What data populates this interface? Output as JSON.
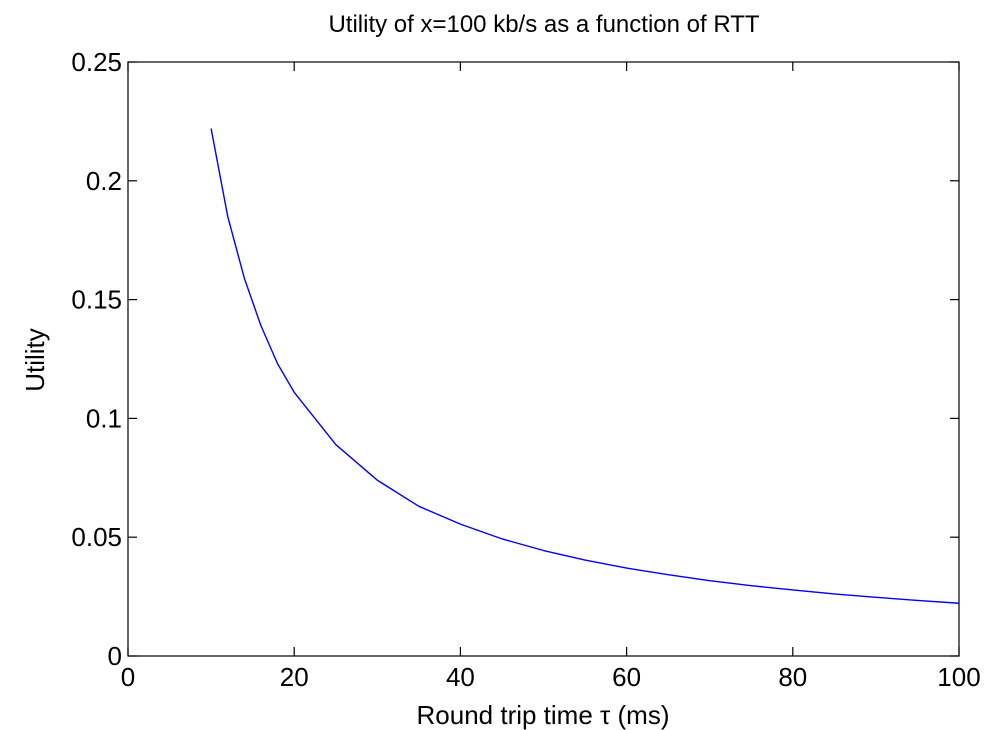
{
  "chart_data": {
    "type": "line",
    "title": "Utility of x=100 kb/s as a function of RTT",
    "xlabel": "Round trip time τ (ms)",
    "ylabel": "Utility",
    "xlim": [
      0,
      100
    ],
    "ylim": [
      0,
      0.25
    ],
    "xticks": [
      0,
      20,
      40,
      60,
      80,
      100
    ],
    "xtick_labels": [
      "0",
      "20",
      "40",
      "60",
      "80",
      "100"
    ],
    "yticks": [
      0,
      0.05,
      0.1,
      0.15,
      0.2,
      0.25
    ],
    "ytick_labels": [
      "0",
      "0.05",
      "0.1",
      "0.15",
      "0.2",
      "0.25"
    ],
    "grid": false,
    "series": [
      {
        "color": "#0000ff",
        "x": [
          10,
          12,
          14,
          16,
          18,
          20,
          25,
          30,
          35,
          40,
          45,
          50,
          55,
          60,
          65,
          70,
          75,
          80,
          85,
          90,
          95,
          100
        ],
        "y": [
          0.222,
          0.185,
          0.159,
          0.139,
          0.123,
          0.111,
          0.089,
          0.074,
          0.063,
          0.0555,
          0.0493,
          0.0444,
          0.0404,
          0.037,
          0.0342,
          0.0317,
          0.0296,
          0.0278,
          0.0261,
          0.0247,
          0.0234,
          0.0222
        ]
      }
    ]
  }
}
